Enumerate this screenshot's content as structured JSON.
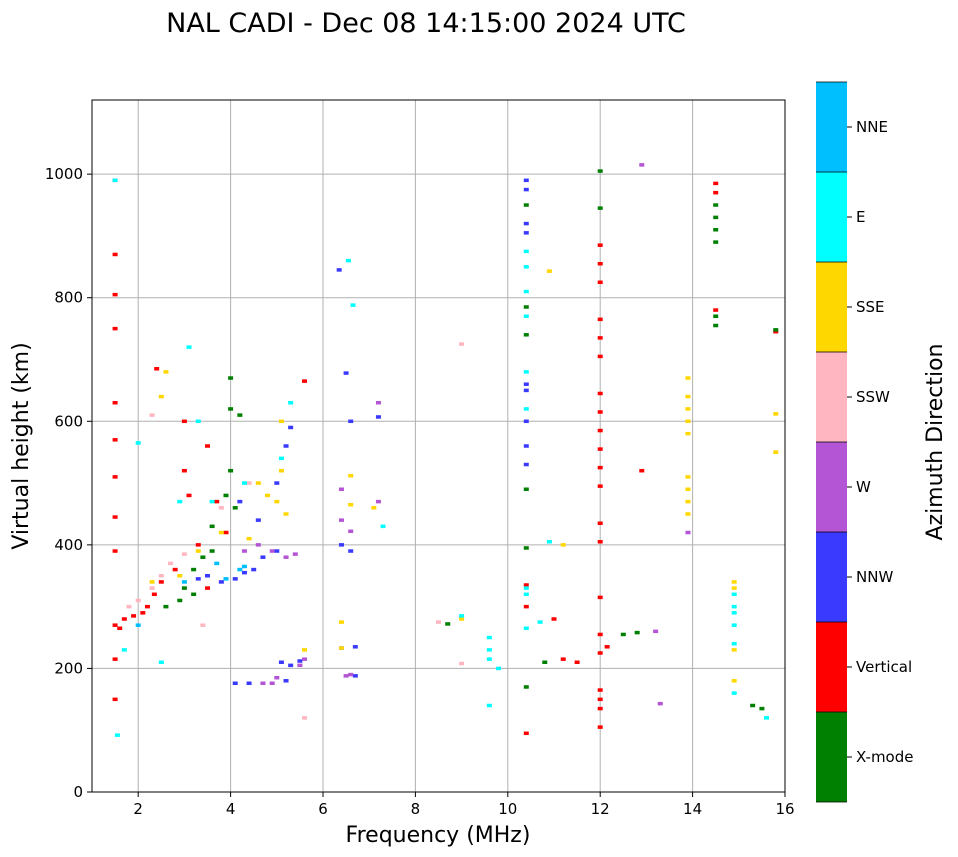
{
  "chart_data": {
    "type": "scatter",
    "title": "NAL CADI - Dec 08 14:15:00 2024 UTC",
    "xlabel": "Frequency (MHz)",
    "ylabel": "Virtual height (km)",
    "xlim": [
      1,
      16
    ],
    "ylim": [
      0,
      1120
    ],
    "xticks": [
      2,
      4,
      6,
      8,
      10,
      12,
      14,
      16
    ],
    "yticks": [
      0,
      200,
      400,
      600,
      800,
      1000
    ],
    "xtick_labels": [
      "2",
      "4",
      "6",
      "8",
      "10",
      "12",
      "14",
      "16"
    ],
    "ytick_labels": [
      "0",
      "200",
      "400",
      "600",
      "800",
      "1000"
    ],
    "grid": true,
    "colorbar": {
      "label": "Azimuth Direction",
      "categories": [
        {
          "name": "X-mode",
          "color": "#008000"
        },
        {
          "name": "Vertical",
          "color": "#ff0000"
        },
        {
          "name": "NNW",
          "color": "#3a3aff"
        },
        {
          "name": "W",
          "color": "#b455d6"
        },
        {
          "name": "SSW",
          "color": "#ffb6c1"
        },
        {
          "name": "SSE",
          "color": "#ffd700"
        },
        {
          "name": "E",
          "color": "#00ffff"
        },
        {
          "name": "NNE",
          "color": "#00bfff"
        }
      ]
    },
    "series": [
      {
        "name": "Vertical",
        "points": [
          [
            1.5,
            990
          ],
          [
            1.5,
            870
          ],
          [
            1.5,
            805
          ],
          [
            1.5,
            750
          ],
          [
            1.5,
            630
          ],
          [
            1.5,
            570
          ],
          [
            1.5,
            510
          ],
          [
            1.5,
            445
          ],
          [
            1.5,
            390
          ],
          [
            1.5,
            270
          ],
          [
            1.5,
            215
          ],
          [
            1.5,
            150
          ],
          [
            1.6,
            265
          ],
          [
            1.7,
            280
          ],
          [
            1.9,
            285
          ],
          [
            2.1,
            290
          ],
          [
            2.2,
            300
          ],
          [
            2.35,
            320
          ],
          [
            2.5,
            340
          ],
          [
            2.4,
            685
          ],
          [
            2.8,
            360
          ],
          [
            3.0,
            600
          ],
          [
            3.0,
            520
          ],
          [
            3.1,
            480
          ],
          [
            3.3,
            400
          ],
          [
            3.5,
            330
          ],
          [
            3.5,
            560
          ],
          [
            3.7,
            470
          ],
          [
            3.9,
            420
          ],
          [
            5.6,
            665
          ],
          [
            10.4,
            95
          ],
          [
            10.4,
            335
          ],
          [
            10.4,
            300
          ],
          [
            11.0,
            280
          ],
          [
            11.2,
            215
          ],
          [
            11.5,
            210
          ],
          [
            12.0,
            105
          ],
          [
            12.0,
            135
          ],
          [
            12.0,
            150
          ],
          [
            12.0,
            165
          ],
          [
            12.0,
            225
          ],
          [
            12.0,
            255
          ],
          [
            12.0,
            315
          ],
          [
            12.0,
            405
          ],
          [
            12.0,
            435
          ],
          [
            12.0,
            495
          ],
          [
            12.0,
            525
          ],
          [
            12.0,
            555
          ],
          [
            12.0,
            585
          ],
          [
            12.0,
            615
          ],
          [
            12.0,
            645
          ],
          [
            12.0,
            705
          ],
          [
            12.0,
            735
          ],
          [
            12.0,
            765
          ],
          [
            12.0,
            825
          ],
          [
            12.0,
            855
          ],
          [
            12.0,
            885
          ],
          [
            12.15,
            235
          ],
          [
            12.9,
            520
          ],
          [
            14.5,
            985
          ],
          [
            14.5,
            970
          ],
          [
            14.5,
            780
          ],
          [
            15.8,
            745
          ]
        ]
      },
      {
        "name": "X-mode",
        "points": [
          [
            2.6,
            300
          ],
          [
            2.9,
            310
          ],
          [
            3.0,
            330
          ],
          [
            3.2,
            320
          ],
          [
            3.2,
            360
          ],
          [
            3.4,
            380
          ],
          [
            3.6,
            390
          ],
          [
            3.6,
            430
          ],
          [
            3.9,
            480
          ],
          [
            4.0,
            520
          ],
          [
            4.0,
            670
          ],
          [
            4.0,
            620
          ],
          [
            4.2,
            610
          ],
          [
            4.1,
            460
          ],
          [
            8.7,
            272
          ],
          [
            10.4,
            170
          ],
          [
            10.4,
            395
          ],
          [
            10.4,
            490
          ],
          [
            10.4,
            740
          ],
          [
            10.4,
            785
          ],
          [
            10.4,
            950
          ],
          [
            10.8,
            210
          ],
          [
            12.0,
            1005
          ],
          [
            12.0,
            945
          ],
          [
            12.5,
            255
          ],
          [
            12.8,
            258
          ],
          [
            14.5,
            950
          ],
          [
            14.5,
            930
          ],
          [
            14.5,
            910
          ],
          [
            14.5,
            890
          ],
          [
            14.5,
            770
          ],
          [
            14.5,
            755
          ],
          [
            15.3,
            140
          ],
          [
            15.5,
            135
          ],
          [
            15.8,
            748
          ]
        ]
      },
      {
        "name": "NNW",
        "points": [
          [
            3.3,
            345
          ],
          [
            3.5,
            350
          ],
          [
            3.8,
            340
          ],
          [
            4.1,
            345
          ],
          [
            4.3,
            355
          ],
          [
            4.5,
            360
          ],
          [
            4.7,
            380
          ],
          [
            5.0,
            390
          ],
          [
            5.0,
            500
          ],
          [
            5.2,
            560
          ],
          [
            5.3,
            590
          ],
          [
            4.2,
            470
          ],
          [
            4.6,
            440
          ],
          [
            4.1,
            176
          ],
          [
            4.4,
            176
          ],
          [
            5.1,
            210
          ],
          [
            5.3,
            205
          ],
          [
            5.5,
            212
          ],
          [
            5.2,
            180
          ],
          [
            6.35,
            845
          ],
          [
            6.5,
            678
          ],
          [
            6.6,
            600
          ],
          [
            6.6,
            390
          ],
          [
            6.4,
            400
          ],
          [
            6.4,
            233
          ],
          [
            6.7,
            188
          ],
          [
            6.7,
            235
          ],
          [
            7.2,
            607
          ],
          [
            10.4,
            990
          ],
          [
            10.4,
            975
          ],
          [
            10.4,
            920
          ],
          [
            10.4,
            905
          ],
          [
            10.4,
            650
          ],
          [
            10.4,
            600
          ],
          [
            10.4,
            560
          ],
          [
            10.4,
            530
          ],
          [
            10.4,
            660
          ]
        ]
      },
      {
        "name": "W",
        "points": [
          [
            4.3,
            390
          ],
          [
            4.6,
            400
          ],
          [
            4.9,
            390
          ],
          [
            5.2,
            380
          ],
          [
            5.4,
            385
          ],
          [
            4.7,
            176
          ],
          [
            4.9,
            176
          ],
          [
            5.0,
            185
          ],
          [
            5.6,
            215
          ],
          [
            5.5,
            205
          ],
          [
            6.4,
            490
          ],
          [
            6.4,
            440
          ],
          [
            6.6,
            422
          ],
          [
            6.6,
            190
          ],
          [
            6.5,
            188
          ],
          [
            7.2,
            630
          ],
          [
            7.2,
            470
          ],
          [
            12.9,
            1015
          ],
          [
            13.3,
            143
          ],
          [
            13.2,
            260
          ],
          [
            13.9,
            420
          ]
        ]
      },
      {
        "name": "SSW",
        "points": [
          [
            1.8,
            300
          ],
          [
            2.0,
            310
          ],
          [
            2.3,
            330
          ],
          [
            2.5,
            350
          ],
          [
            2.7,
            370
          ],
          [
            3.0,
            385
          ],
          [
            2.3,
            610
          ],
          [
            3.4,
            270
          ],
          [
            9.0,
            725
          ],
          [
            8.5,
            275
          ],
          [
            9.0,
            208
          ],
          [
            5.6,
            120
          ],
          [
            4.4,
            500
          ],
          [
            3.8,
            460
          ]
        ]
      },
      {
        "name": "SSE",
        "points": [
          [
            2.3,
            340
          ],
          [
            2.5,
            640
          ],
          [
            2.6,
            680
          ],
          [
            2.9,
            350
          ],
          [
            3.3,
            390
          ],
          [
            3.8,
            420
          ],
          [
            4.4,
            410
          ],
          [
            4.6,
            500
          ],
          [
            4.8,
            480
          ],
          [
            5.0,
            470
          ],
          [
            5.1,
            520
          ],
          [
            5.1,
            600
          ],
          [
            5.2,
            450
          ],
          [
            5.6,
            230
          ],
          [
            6.4,
            275
          ],
          [
            6.4,
            233
          ],
          [
            6.6,
            512
          ],
          [
            6.6,
            465
          ],
          [
            7.1,
            460
          ],
          [
            9.0,
            280
          ],
          [
            11.2,
            400
          ],
          [
            10.9,
            843
          ],
          [
            13.9,
            670
          ],
          [
            13.9,
            640
          ],
          [
            13.9,
            620
          ],
          [
            13.9,
            600
          ],
          [
            13.9,
            580
          ],
          [
            13.9,
            510
          ],
          [
            13.9,
            490
          ],
          [
            13.9,
            470
          ],
          [
            13.9,
            450
          ],
          [
            14.9,
            340
          ],
          [
            14.9,
            330
          ],
          [
            14.9,
            230
          ],
          [
            14.9,
            180
          ],
          [
            15.8,
            612
          ],
          [
            15.8,
            550
          ]
        ]
      },
      {
        "name": "E",
        "points": [
          [
            1.5,
            990
          ],
          [
            1.55,
            92
          ],
          [
            1.7,
            230
          ],
          [
            2.0,
            565
          ],
          [
            2.5,
            210
          ],
          [
            3.1,
            720
          ],
          [
            2.9,
            470
          ],
          [
            3.3,
            600
          ],
          [
            3.6,
            470
          ],
          [
            4.3,
            500
          ],
          [
            5.1,
            540
          ],
          [
            5.3,
            630
          ],
          [
            6.55,
            860
          ],
          [
            6.65,
            788
          ],
          [
            7.3,
            430
          ],
          [
            9.0,
            285
          ],
          [
            9.6,
            250
          ],
          [
            9.6,
            230
          ],
          [
            9.6,
            215
          ],
          [
            9.6,
            140
          ],
          [
            9.8,
            200
          ],
          [
            10.4,
            320
          ],
          [
            10.4,
            265
          ],
          [
            10.4,
            330
          ],
          [
            10.4,
            620
          ],
          [
            10.4,
            680
          ],
          [
            10.4,
            770
          ],
          [
            10.4,
            810
          ],
          [
            10.4,
            875
          ],
          [
            10.4,
            850
          ],
          [
            10.7,
            275
          ],
          [
            10.9,
            405
          ],
          [
            14.9,
            320
          ],
          [
            14.9,
            300
          ],
          [
            14.9,
            290
          ],
          [
            14.9,
            270
          ],
          [
            14.9,
            240
          ],
          [
            14.9,
            160
          ],
          [
            15.6,
            120
          ]
        ]
      },
      {
        "name": "NNE",
        "points": [
          [
            3.7,
            370
          ],
          [
            3.9,
            345
          ],
          [
            4.2,
            360
          ],
          [
            4.3,
            365
          ],
          [
            3.0,
            340
          ],
          [
            2.0,
            270
          ]
        ]
      }
    ]
  }
}
